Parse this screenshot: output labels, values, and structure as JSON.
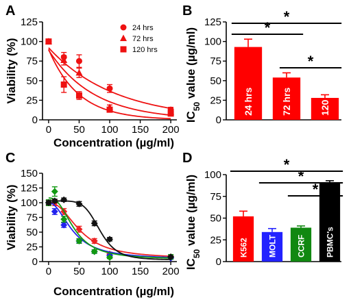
{
  "chart_data": [
    {
      "id": "A",
      "panel_label": "A",
      "type": "scatter",
      "xlabel": "Concentration (µg/ml)",
      "ylabel": "Viability (%)",
      "xlim": [
        -10,
        210
      ],
      "ylim": [
        0,
        125
      ],
      "xticks": [
        0,
        50,
        100,
        150,
        200
      ],
      "yticks": [
        0,
        25,
        50,
        75,
        100,
        125
      ],
      "legend_position": "top-right",
      "series": [
        {
          "name": "24 hrs",
          "marker": "circle",
          "color": "#ee1111",
          "x": [
            0,
            25,
            50,
            100,
            200
          ],
          "y": [
            100,
            80,
            75,
            40,
            13
          ],
          "err": [
            2,
            6,
            8,
            5,
            3
          ],
          "fit": {
            "y0": 92,
            "k": 0.0092
          }
        },
        {
          "name": "72 hrs",
          "marker": "triangle",
          "color": "#ee1111",
          "x": [
            0,
            25,
            50,
            100,
            200
          ],
          "y": [
            100,
            76,
            60,
            16,
            10
          ],
          "err": [
            2,
            6,
            6,
            3,
            2
          ],
          "fit": {
            "y0": 89,
            "k": 0.0135
          }
        },
        {
          "name": "120 hrs",
          "marker": "square",
          "color": "#ee1111",
          "x": [
            0,
            25,
            50,
            100,
            200
          ],
          "y": [
            100,
            45,
            31,
            13,
            8
          ],
          "err": [
            2,
            10,
            5,
            3,
            2
          ],
          "fit": {
            "y0": 90,
            "k": 0.0205
          }
        }
      ]
    },
    {
      "id": "B",
      "panel_label": "B",
      "type": "bar",
      "ylabel": "IC50 value (µg/ml)",
      "ylim": [
        0,
        125
      ],
      "yticks": [
        0,
        25,
        50,
        75,
        100,
        125
      ],
      "categories": [
        "24 hrs",
        "72 hrs",
        "120"
      ],
      "values": [
        93,
        54,
        28
      ],
      "errors": [
        10,
        6,
        4
      ],
      "colors": [
        "#ff0000",
        "#ff0000",
        "#ff0000"
      ],
      "significance": [
        {
          "from": 0,
          "to": 2,
          "label": "*",
          "level": 0
        },
        {
          "from": 0,
          "to": 1,
          "label": "*",
          "level": 1
        },
        {
          "from": 1,
          "to": 2,
          "label": "*",
          "level": 2
        }
      ]
    },
    {
      "id": "C",
      "panel_label": "C",
      "type": "scatter",
      "xlabel": "Concentration (µg/ml)",
      "ylabel": "Viability (%)",
      "xlim": [
        -10,
        210
      ],
      "ylim": [
        0,
        150
      ],
      "xticks": [
        0,
        50,
        100,
        150,
        200
      ],
      "yticks": [
        0,
        25,
        50,
        75,
        100,
        125,
        150
      ],
      "series": [
        {
          "color": "#ee2222",
          "x": [
            0,
            10,
            25,
            50,
            75,
            100,
            200
          ],
          "y": [
            100,
            100,
            85,
            55,
            35,
            13,
            8
          ],
          "err": [
            4,
            5,
            5,
            5,
            4,
            3,
            2
          ],
          "fit": {
            "top": 100,
            "bottom": 5,
            "ec50": 52,
            "hill": 2.3
          }
        },
        {
          "color": "#2222ee",
          "x": [
            0,
            10,
            25,
            50,
            75,
            100,
            200
          ],
          "y": [
            100,
            85,
            62,
            35,
            17,
            10,
            6
          ],
          "err": [
            3,
            5,
            4,
            3,
            3,
            2,
            2
          ],
          "fit": {
            "top": 100,
            "bottom": 4,
            "ec50": 40,
            "hill": 2.1
          }
        },
        {
          "color": "#119911",
          "x": [
            0,
            10,
            25,
            50,
            75,
            100,
            200
          ],
          "y": [
            100,
            119,
            72,
            35,
            17,
            7,
            8
          ],
          "err": [
            5,
            8,
            5,
            4,
            3,
            2,
            4
          ],
          "fit": {
            "top": 108,
            "bottom": 4,
            "ec50": 42,
            "hill": 2.5
          }
        },
        {
          "color": "#111111",
          "x": [
            0,
            10,
            25,
            50,
            75,
            100,
            200
          ],
          "y": [
            100,
            103,
            105,
            98,
            65,
            38,
            8
          ],
          "err": [
            3,
            3,
            3,
            4,
            4,
            3,
            2
          ],
          "fit": {
            "top": 103,
            "bottom": 3,
            "ec50": 84,
            "hill": 6
          }
        }
      ]
    },
    {
      "id": "D",
      "panel_label": "D",
      "type": "bar",
      "ylabel": "IC50 value (µg/ml)",
      "ylim": [
        0,
        100
      ],
      "yticks": [
        0,
        25,
        50,
        75,
        100
      ],
      "categories": [
        "K562",
        "MOLT",
        "CCRF",
        "PBMC's"
      ],
      "values": [
        52,
        34,
        39,
        91
      ],
      "errors": [
        6,
        4,
        2,
        2
      ],
      "colors": [
        "#ff0000",
        "#2222ff",
        "#118811",
        "#000000"
      ],
      "significance": [
        {
          "from": 0,
          "to": 3,
          "label": "*",
          "level": 0
        },
        {
          "from": 1,
          "to": 3,
          "label": "*",
          "level": 1
        },
        {
          "from": 2,
          "to": 3,
          "label": "*",
          "level": 2
        }
      ]
    }
  ]
}
